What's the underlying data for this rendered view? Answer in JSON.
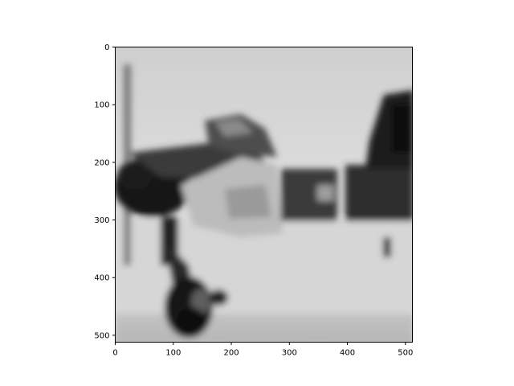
{
  "figure": {
    "x_axis": {
      "range": [
        0,
        512
      ],
      "ticks": [
        0,
        100,
        200,
        300,
        400,
        500
      ]
    },
    "y_axis": {
      "range": [
        0,
        512
      ],
      "inverted": true,
      "ticks": [
        0,
        100,
        200,
        300,
        400,
        500
      ]
    },
    "colormap": "gray"
  },
  "image": {
    "description_tags": [
      "grayscale",
      "blurred",
      "airplane",
      "propeller",
      "landing-gear",
      "tail-fin",
      "ground"
    ]
  }
}
